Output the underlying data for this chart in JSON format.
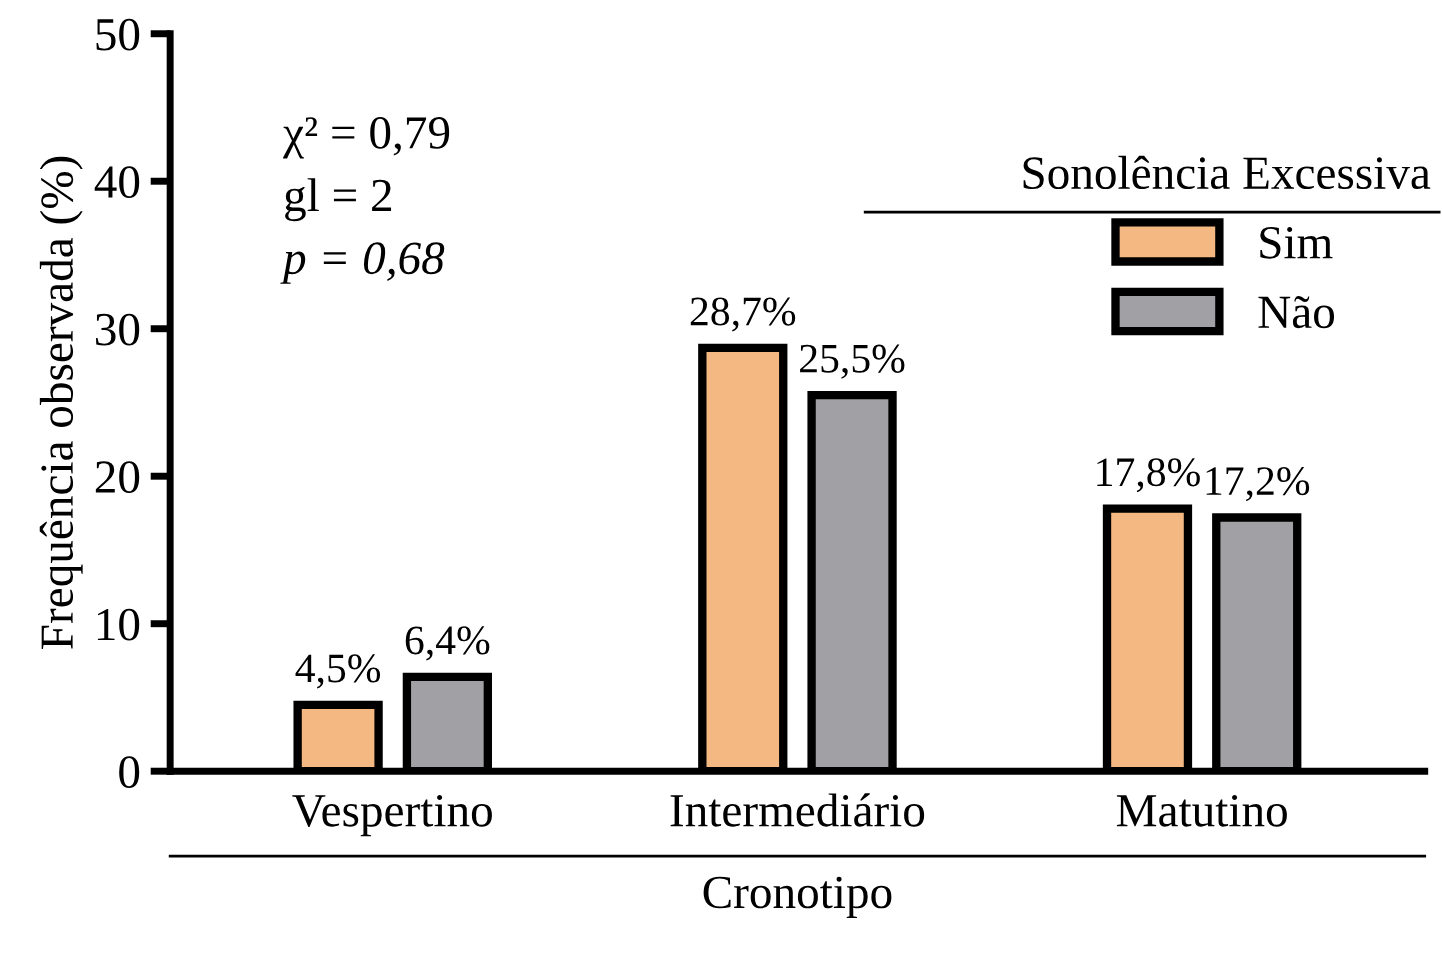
{
  "chart_data": {
    "type": "bar",
    "xlabel": "Cronotipo",
    "ylabel": "Frequência observada (%)",
    "legend_title": "Sonolência Excessiva",
    "categories": [
      "Vespertino",
      "Intermediário",
      "Matutino"
    ],
    "series": [
      {
        "name": "Sim",
        "color": "#f4b983",
        "values": [
          4.5,
          28.7,
          17.8
        ],
        "value_labels": [
          "4,5%",
          "28,7%",
          "17,8%"
        ]
      },
      {
        "name": "Não",
        "color": "#a1a1a5",
        "values": [
          6.4,
          25.5,
          17.2
        ],
        "value_labels": [
          "6,4%",
          "25,5%",
          "17,2%"
        ]
      }
    ],
    "ylim": [
      0,
      50
    ],
    "yticks": [
      0,
      10,
      20,
      30,
      40,
      50
    ],
    "grid": false,
    "legend": "top right",
    "annotations": [
      "χ² = 0,79",
      "gl = 2",
      "p = 0,68"
    ]
  }
}
